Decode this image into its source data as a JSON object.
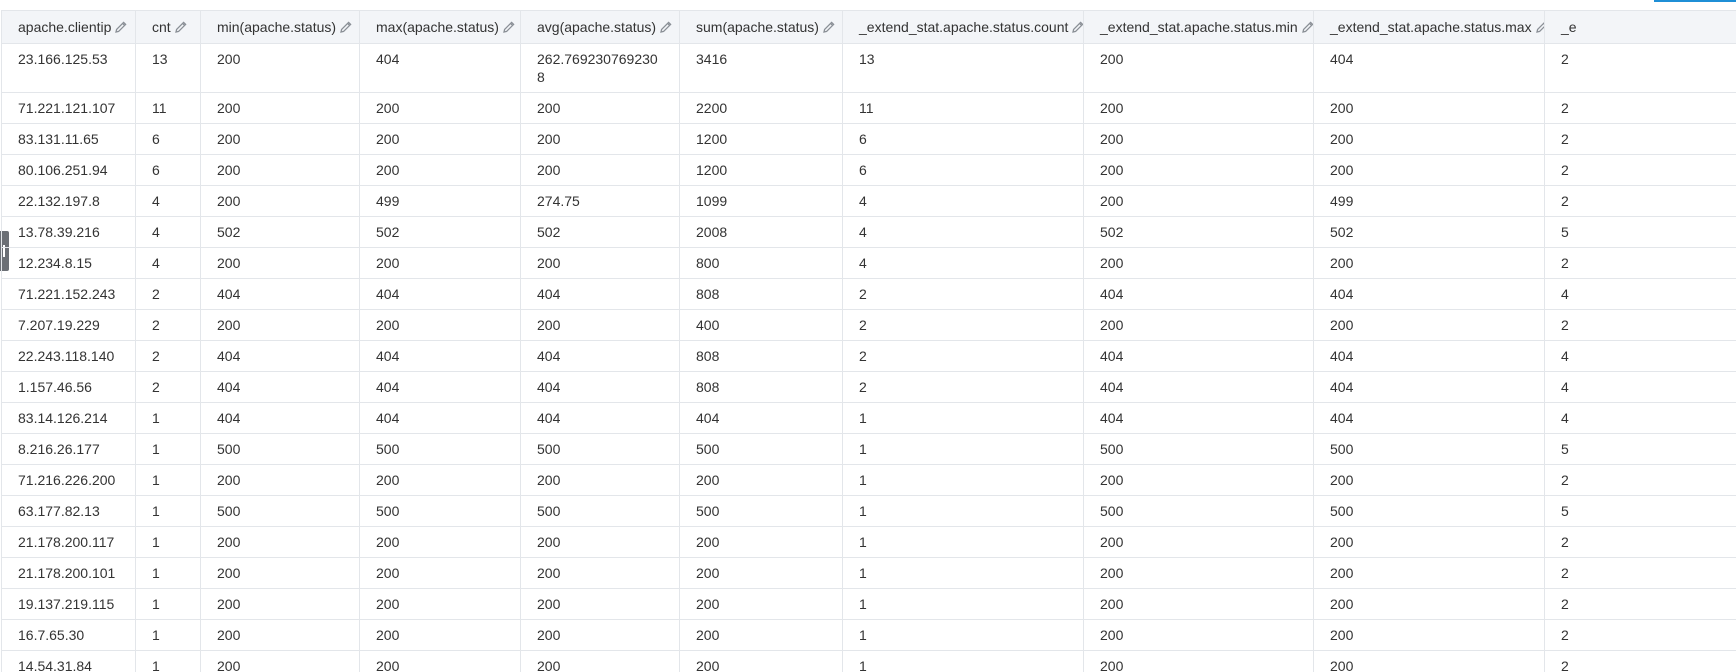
{
  "table": {
    "columns": [
      {
        "label": "apache.clientip",
        "icon": "pencil-icon"
      },
      {
        "label": "cnt",
        "icon": "pencil-icon"
      },
      {
        "label": "min(apache.status)",
        "icon": "pencil-icon"
      },
      {
        "label": "max(apache.status)",
        "icon": "pencil-icon"
      },
      {
        "label": "avg(apache.status)",
        "icon": "pencil-icon"
      },
      {
        "label": "sum(apache.status)",
        "icon": "pencil-icon"
      },
      {
        "label": "_extend_stat.apache.status.count",
        "icon": "pencil-icon"
      },
      {
        "label": "_extend_stat.apache.status.min",
        "icon": "pencil-icon"
      },
      {
        "label": "_extend_stat.apache.status.max",
        "icon": "pencil-icon"
      },
      {
        "label": "_e",
        "icon": ""
      }
    ],
    "rows": [
      [
        "23.166.125.53",
        "13",
        "200",
        "404",
        "262.769230769230​8",
        "3416",
        "13",
        "200",
        "404",
        "2"
      ],
      [
        "71.221.121.107",
        "11",
        "200",
        "200",
        "200",
        "2200",
        "11",
        "200",
        "200",
        "2"
      ],
      [
        "83.131.11.65",
        "6",
        "200",
        "200",
        "200",
        "1200",
        "6",
        "200",
        "200",
        "2"
      ],
      [
        "80.106.251.94",
        "6",
        "200",
        "200",
        "200",
        "1200",
        "6",
        "200",
        "200",
        "2"
      ],
      [
        "22.132.197.8",
        "4",
        "200",
        "499",
        "274.75",
        "1099",
        "4",
        "200",
        "499",
        "2"
      ],
      [
        "13.78.39.216",
        "4",
        "502",
        "502",
        "502",
        "2008",
        "4",
        "502",
        "502",
        "5"
      ],
      [
        "12.234.8.15",
        "4",
        "200",
        "200",
        "200",
        "800",
        "4",
        "200",
        "200",
        "2"
      ],
      [
        "71.221.152.243",
        "2",
        "404",
        "404",
        "404",
        "808",
        "2",
        "404",
        "404",
        "4"
      ],
      [
        "7.207.19.229",
        "2",
        "200",
        "200",
        "200",
        "400",
        "2",
        "200",
        "200",
        "2"
      ],
      [
        "22.243.118.140",
        "2",
        "404",
        "404",
        "404",
        "808",
        "2",
        "404",
        "404",
        "4"
      ],
      [
        "1.157.46.56",
        "2",
        "404",
        "404",
        "404",
        "808",
        "2",
        "404",
        "404",
        "4"
      ],
      [
        "83.14.126.214",
        "1",
        "404",
        "404",
        "404",
        "404",
        "1",
        "404",
        "404",
        "4"
      ],
      [
        "8.216.26.177",
        "1",
        "500",
        "500",
        "500",
        "500",
        "1",
        "500",
        "500",
        "5"
      ],
      [
        "71.216.226.200",
        "1",
        "200",
        "200",
        "200",
        "200",
        "1",
        "200",
        "200",
        "2"
      ],
      [
        "63.177.82.13",
        "1",
        "500",
        "500",
        "500",
        "500",
        "1",
        "500",
        "500",
        "5"
      ],
      [
        "21.178.200.117",
        "1",
        "200",
        "200",
        "200",
        "200",
        "1",
        "200",
        "200",
        "2"
      ],
      [
        "21.178.200.101",
        "1",
        "200",
        "200",
        "200",
        "200",
        "1",
        "200",
        "200",
        "2"
      ],
      [
        "19.137.219.115",
        "1",
        "200",
        "200",
        "200",
        "200",
        "1",
        "200",
        "200",
        "2"
      ],
      [
        "16.7.65.30",
        "1",
        "200",
        "200",
        "200",
        "200",
        "1",
        "200",
        "200",
        "2"
      ],
      [
        "14.54.31.84",
        "1",
        "200",
        "200",
        "200",
        "200",
        "1",
        "200",
        "200",
        "2"
      ]
    ]
  },
  "colors": {
    "header_bg": "#f3f5f8",
    "border": "#e3e6ea",
    "accent": "#1f8fd6",
    "text": "#333333"
  }
}
